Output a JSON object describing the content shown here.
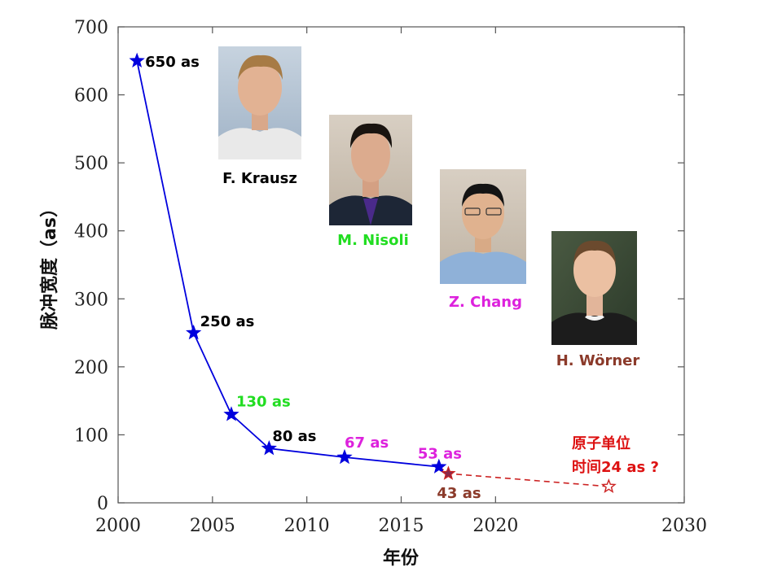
{
  "chart_data": {
    "type": "line",
    "xlabel": "年份",
    "ylabel": "脉冲宽度（as）",
    "xlim": [
      2000,
      2030
    ],
    "ylim": [
      0,
      700
    ],
    "x_ticks": [
      "2000",
      "2005",
      "2010",
      "2015",
      "2020",
      "2030"
    ],
    "y_ticks": [
      "0",
      "100",
      "200",
      "300",
      "400",
      "500",
      "600",
      "700"
    ],
    "series": [
      {
        "color": "#0000dd",
        "points": [
          {
            "x": 2001,
            "y": 650,
            "label": "650 as",
            "label_color": "#000000"
          },
          {
            "x": 2004,
            "y": 250,
            "label": "250 as",
            "label_color": "#000000"
          },
          {
            "x": 2006,
            "y": 130,
            "label": "130 as",
            "label_color": "#22dd22"
          },
          {
            "x": 2008,
            "y": 80,
            "label": "80 as",
            "label_color": "#000000"
          },
          {
            "x": 2012,
            "y": 67,
            "label": "67 as",
            "label_color": "#dd22dd"
          },
          {
            "x": 2017,
            "y": 53,
            "label": "53 as",
            "label_color": "#dd22dd"
          }
        ]
      },
      {
        "color": "#cc2222",
        "dashed": true,
        "points": [
          {
            "x": 2017.5,
            "y": 43,
            "label": "43 as",
            "label_color": "#8b3a2a",
            "filled": true
          },
          {
            "x": 2026,
            "y": 24,
            "filled": false
          }
        ]
      }
    ],
    "annotation": {
      "line1": "原子单位",
      "line2_prefix": "时间",
      "line2_value": "24 as ?",
      "color": "#dd1111"
    },
    "photos": [
      {
        "caption": "F. Krausz",
        "caption_color": "#000000"
      },
      {
        "caption": "M. Nisoli",
        "caption_color": "#22dd22"
      },
      {
        "caption": "Z. Chang",
        "caption_color": "#dd22dd"
      },
      {
        "caption": "H. Wörner",
        "caption_color": "#8b3a2a"
      }
    ]
  }
}
